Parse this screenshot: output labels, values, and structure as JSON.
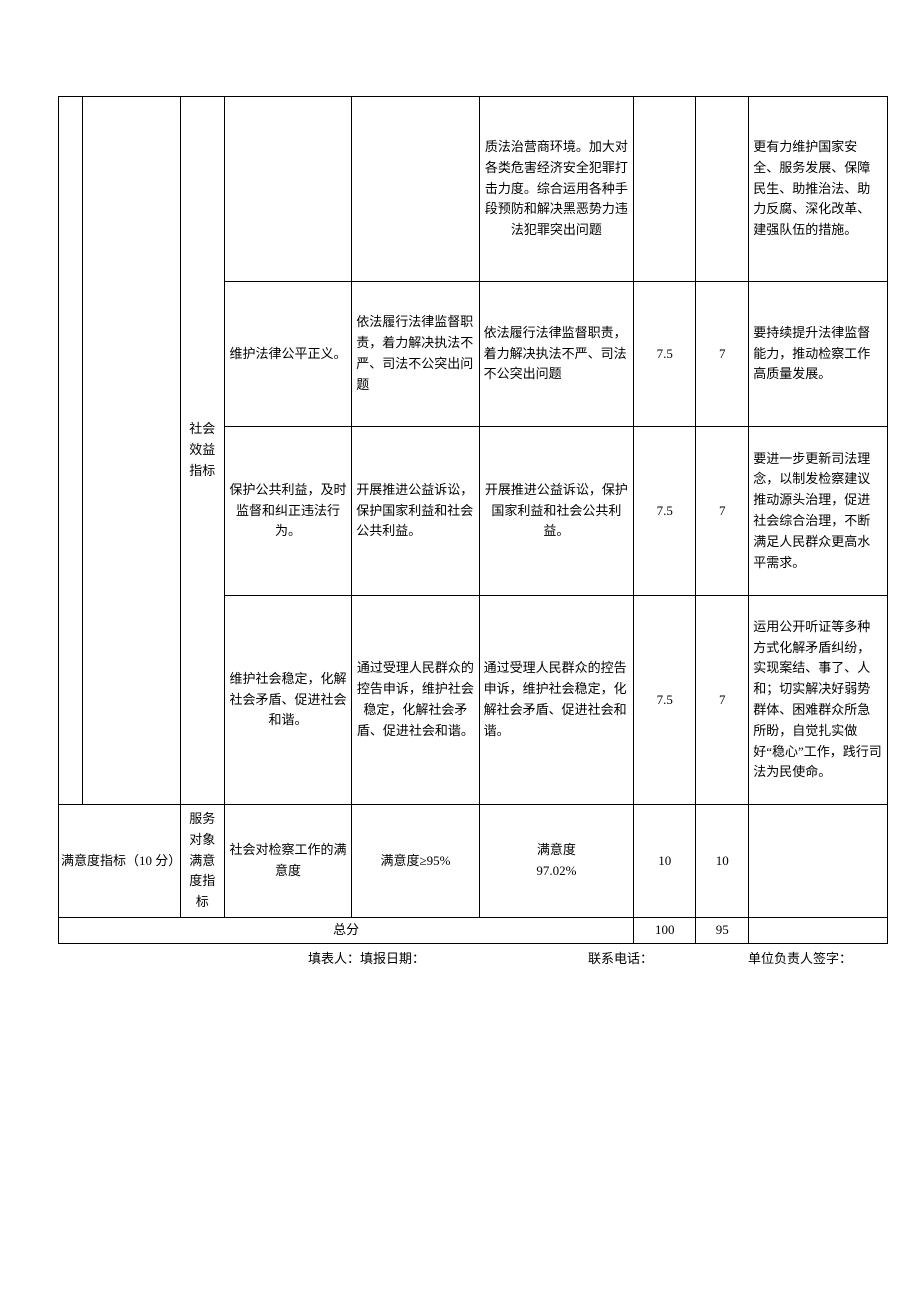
{
  "colors": {
    "border": "#000000",
    "text": "#000000",
    "background": "#ffffff"
  },
  "rows": [
    {
      "c": "社会效益指标",
      "d": "",
      "e": "",
      "f": "质法治营商环境。加大对各类危害经济安全犯罪打击力度。综合运用各种手段预防和解决黑恶势力违法犯罪突出问题",
      "g": "",
      "h": "",
      "i": "更有力维护国家安全、服务发展、保障民生、助推治法、助力反腐、深化改革、建强队伍的措施。"
    },
    {
      "d": "维护法律公平正义。",
      "e": "依法履行法律监督职责，着力解决执法不严、司法不公突出问题",
      "f": "依法履行法律监督职责，着力解决执法不严、司法不公突出问题",
      "g": "7.5",
      "h": "7",
      "i": "要持续提升法律监督能力，推动检察工作高质量发展。"
    },
    {
      "d": "保护公共利益，及时监督和纠正违法行为。",
      "e": "开展推进公益诉讼，保护国家利益和社会公共利益。",
      "f": "开展推进公益诉讼，保护国家利益和社会公共利益。",
      "g": "7.5",
      "h": "7",
      "i": "要进一步更新司法理念，以制发检察建议推动源头治理，促进社会综合治理，不断满足人民群众更高水平需求。"
    },
    {
      "d": "维护社会稳定，化解社会矛盾、促进社会和谐。",
      "e": "通过受理人民群众的控告申诉，维护社会稳定，化解社会矛盾、促进社会和谐。",
      "f": "通过受理人民群众的控告申诉，维护社会稳定，化解社会矛盾、促进社会和谐。",
      "g": "7.5",
      "h": "7",
      "i": "运用公开听证等多种方式化解矛盾纠纷，实现案结、事了、人和；切实解决好弱势群体、困难群众所急所盼，自觉扎实做好“稳心”工作，践行司法为民使命。"
    }
  ],
  "satisfaction": {
    "b": "满意度指标（10 分）",
    "c": "服务对象满意度指标",
    "d": "社会对检察工作的满意度",
    "e": "满意度≥95%",
    "f_label": "满意度",
    "f_value": "97.02%",
    "g": "10",
    "h": "10",
    "i": ""
  },
  "total": {
    "label": "总分",
    "g": "100",
    "h": "95"
  },
  "footer": {
    "left": "填表人：填报日期：",
    "mid": "联系电话：",
    "right": "单位负责人签字："
  }
}
